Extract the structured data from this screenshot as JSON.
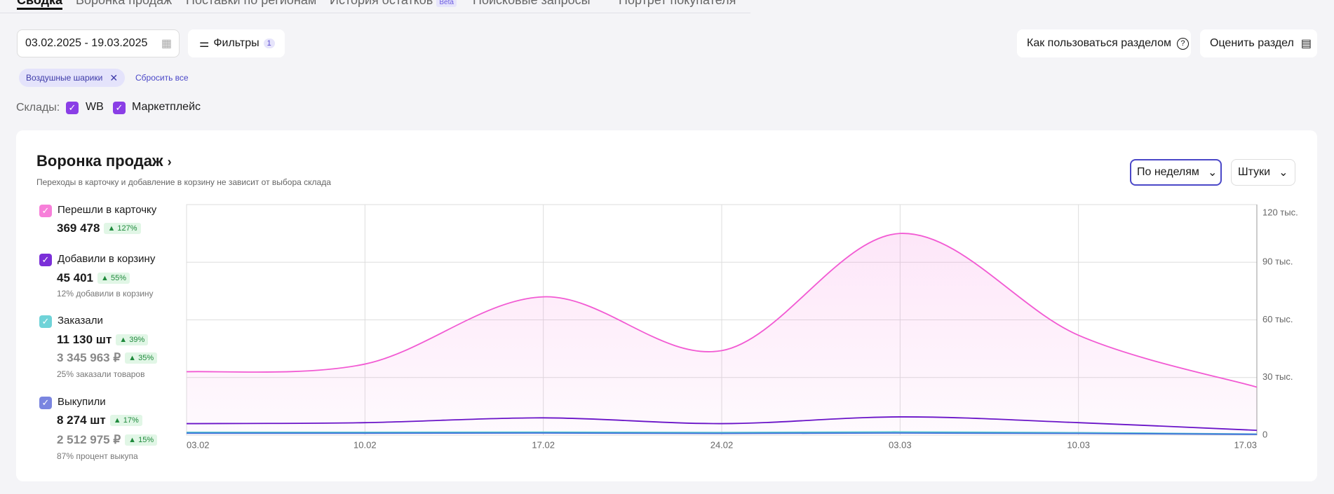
{
  "tabs": [
    {
      "label": "Сводка"
    },
    {
      "label": "Воронка продаж"
    },
    {
      "label": "Поставки по регионам"
    },
    {
      "label": "История остатков",
      "badge": "Beta"
    },
    {
      "label": "Поисковые запросы"
    },
    {
      "label": "Портрет покупателя"
    }
  ],
  "date_range": "03.02.2025 - 19.03.2025",
  "filters": {
    "label": "Фильтры",
    "count": 1
  },
  "help_button": "Как пользоваться разделом",
  "rate_button": "Оценить раздел",
  "active_filter": "Воздушные шарики",
  "reset": "Сбросить все",
  "warehouses": {
    "label": "Склады:",
    "options": [
      "WB",
      "Маркетплейс"
    ]
  },
  "panel": {
    "title": "Воронка продаж",
    "subtitle": "Переходы в карточку и добавление в корзину не зависит от выбора склада",
    "period": "По неделям",
    "unit": "Штуки"
  },
  "legend": [
    {
      "value": "369 478",
      "change": "127%"
    },
    {
      "value": "45 401",
      "change": "55%",
      "note": "12% добавили в корзину"
    },
    {
      "value": "11 130 шт",
      "change": "39%",
      "value2": "3 345 963 ₽",
      "change2": "35%",
      "note": "25% заказали товаров"
    },
    {
      "value": "8 274 шт",
      "change": "17%",
      "value2": "2 512 975 ₽",
      "change2": "15%",
      "note": "87% процент выкупа"
    }
  ],
  "chart_data": {
    "type": "line",
    "categories": [
      "03.02",
      "10.02",
      "17.02",
      "24.02",
      "03.03",
      "10.03",
      "17.03"
    ],
    "series": [
      {
        "name": "Перешли в карточку",
        "color": "#f25ad3",
        "check_color": "#f77fd9",
        "fill": true,
        "values": [
          33000,
          37000,
          72000,
          44000,
          105000,
          52000,
          25000
        ]
      },
      {
        "name": "Добавили в корзину",
        "color": "#6a14c8",
        "check_color": "#7b2fd8",
        "values": [
          6000,
          6500,
          9000,
          6000,
          9500,
          6500,
          2500
        ]
      },
      {
        "name": "Заказали",
        "color": "#5cc7d0",
        "check_color": "#6fd3d8",
        "values": [
          1500,
          1500,
          1600,
          1400,
          1700,
          1300,
          600
        ]
      },
      {
        "name": "Выкупили",
        "color": "#3a6ed8",
        "check_color": "#7a85e0",
        "values": [
          1000,
          1000,
          1100,
          900,
          1100,
          900,
          400
        ]
      }
    ],
    "ylim": [
      0,
      120000
    ],
    "yticks": [
      0,
      {
        "value": 30000,
        "label": "30 тыс."
      },
      {
        "value": 60000,
        "label": "60 тыс."
      },
      {
        "value": 90000,
        "label": "90 тыс."
      },
      {
        "value": 120000,
        "label": "120 тыс."
      }
    ],
    "grid": true
  }
}
